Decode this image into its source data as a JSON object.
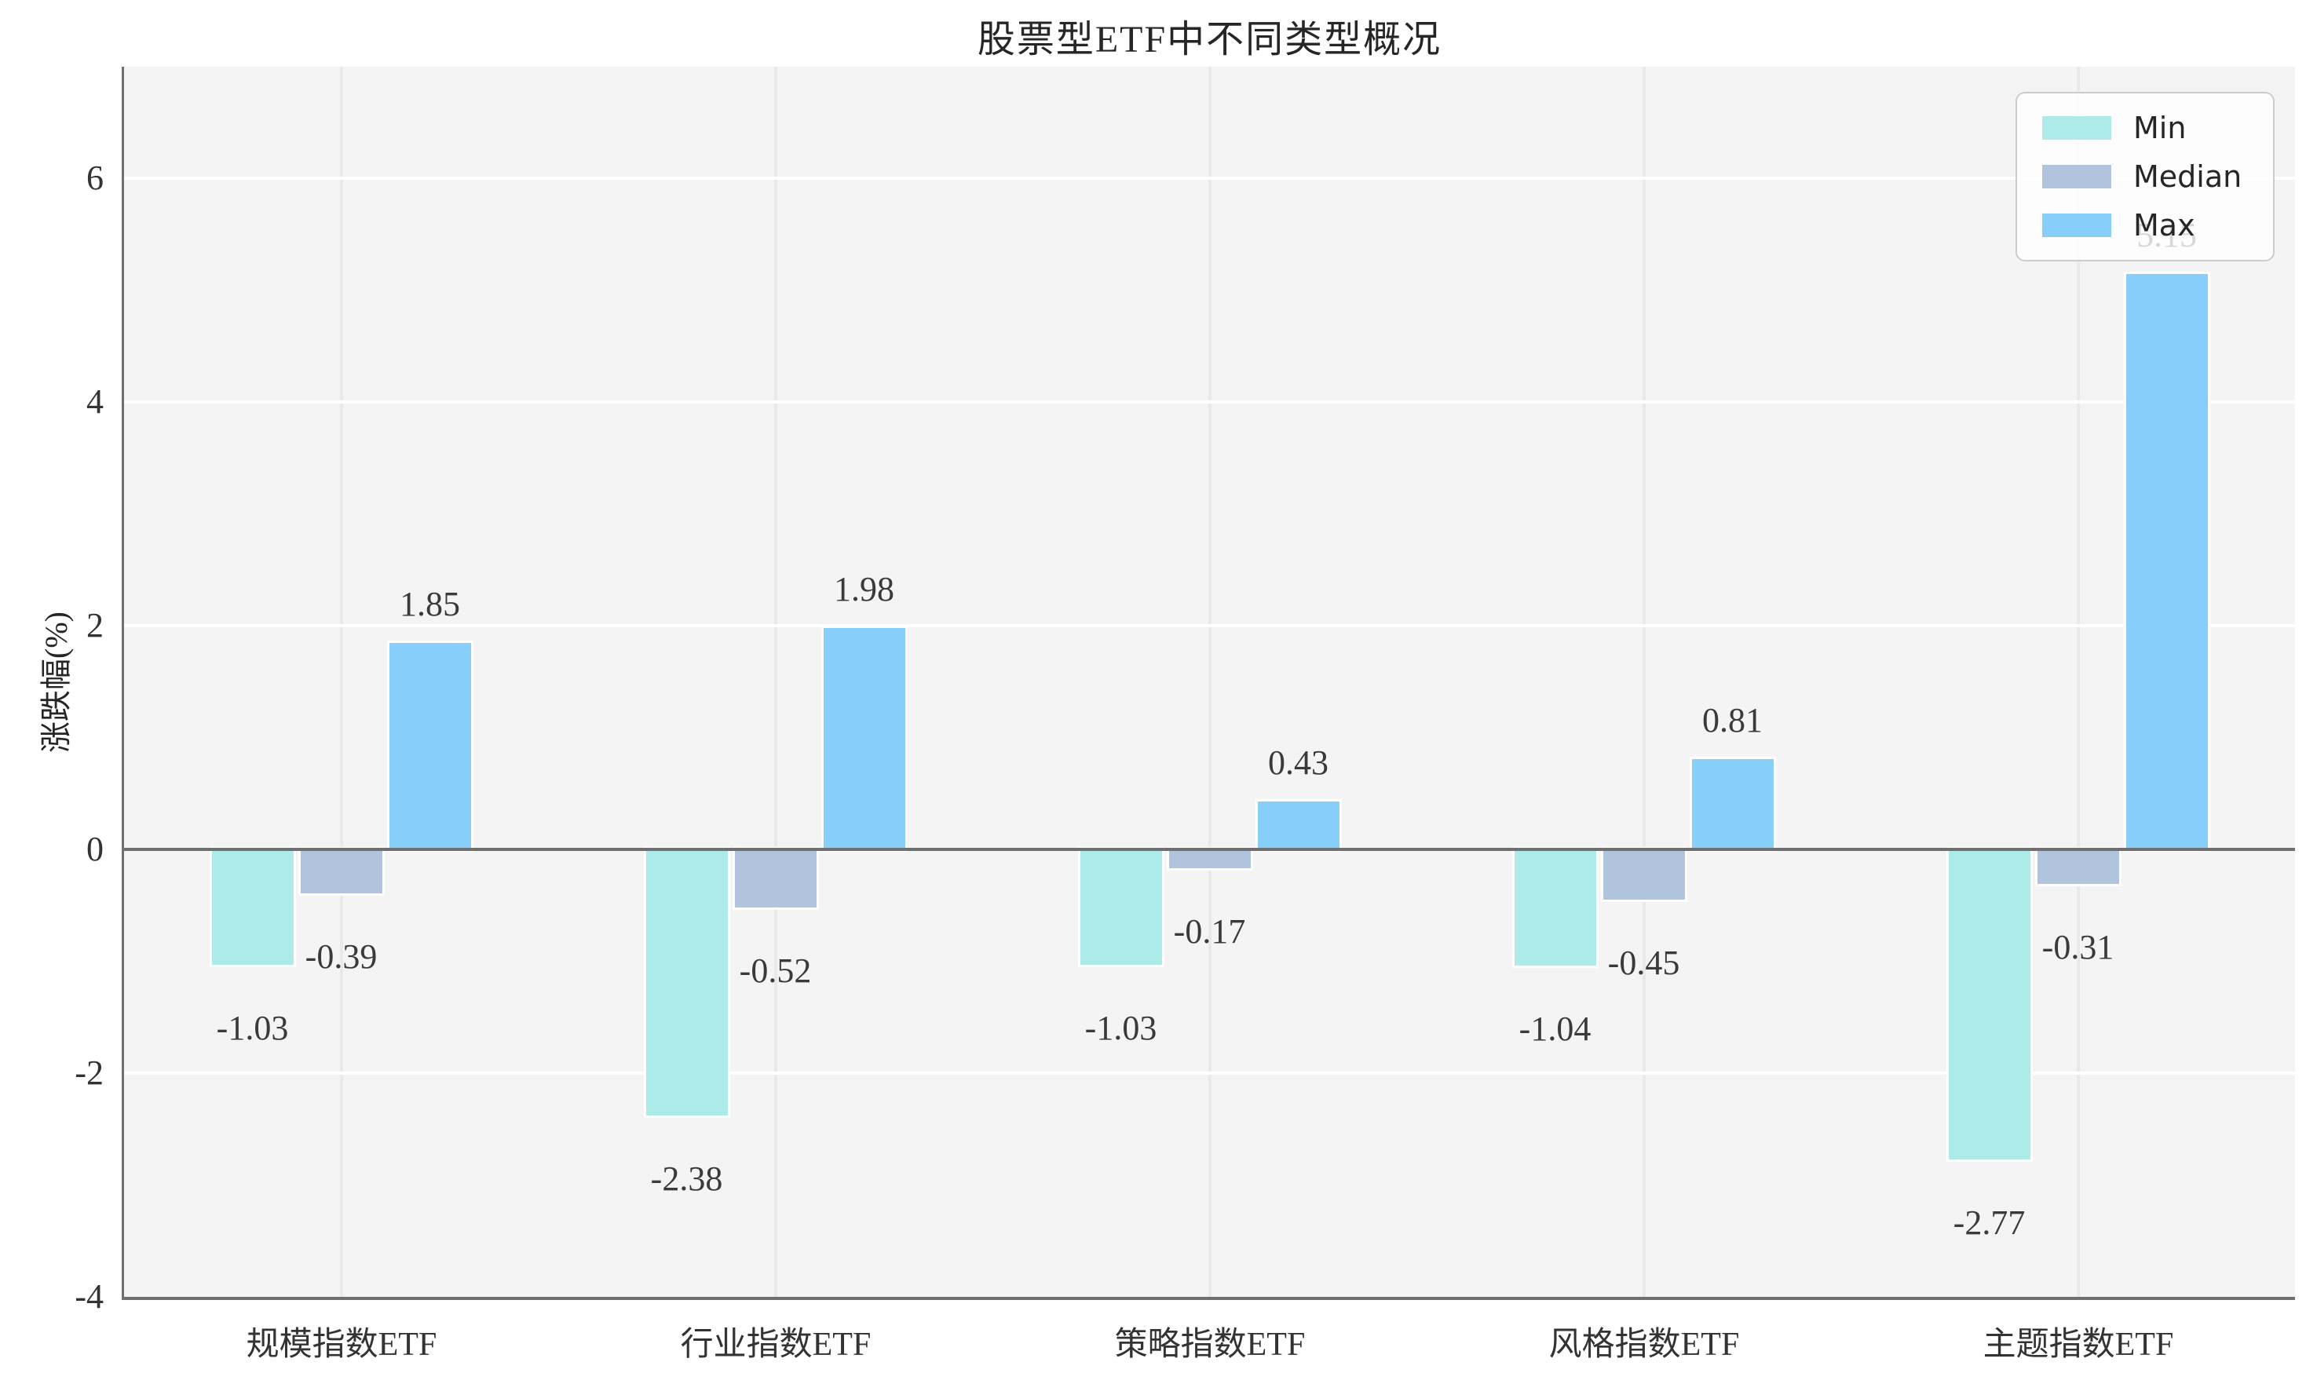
{
  "chart_data": {
    "type": "bar",
    "title": "股票型ETF中不同类型概况",
    "ylabel": "涨跌幅(%)",
    "xlabel": "",
    "categories": [
      "规模指数ETF",
      "行业指数ETF",
      "策略指数ETF",
      "风格指数ETF",
      "主题指数ETF"
    ],
    "series": [
      {
        "name": "Min",
        "color": "#ACEBE8",
        "values": [
          -1.03,
          -2.38,
          -1.03,
          -1.04,
          -2.77
        ],
        "labels": [
          "-1.03",
          "-2.38",
          "-1.03",
          "-1.04",
          "-2.77"
        ]
      },
      {
        "name": "Median",
        "color": "#B0C4DE",
        "values": [
          -0.39,
          -0.52,
          -0.17,
          -0.45,
          -0.31
        ],
        "labels": [
          "-0.39",
          "-0.52",
          "-0.17",
          "-0.45",
          "-0.31"
        ]
      },
      {
        "name": "Max",
        "color": "#87CEFA",
        "values": [
          1.85,
          1.98,
          0.43,
          0.81,
          5.15
        ],
        "labels": [
          "1.85",
          "1.98",
          "0.43",
          "0.81",
          "5.15"
        ]
      }
    ],
    "ylim": [
      -4,
      7
    ],
    "yticks": [
      {
        "value": 6,
        "label": "6"
      },
      {
        "value": 4,
        "label": "4"
      },
      {
        "value": 2,
        "label": "2"
      },
      {
        "value": 0,
        "label": "0"
      },
      {
        "value": -2,
        "label": "-2"
      },
      {
        "value": -4,
        "label": "-4"
      }
    ],
    "grid": true,
    "legend_position": "upper right",
    "plot_background": "#f4f4f4",
    "zero_line_color": "#6f6f6f"
  },
  "legend": {
    "items": [
      {
        "label": "Min",
        "color": "#ACEBE8"
      },
      {
        "label": "Median",
        "color": "#B0C4DE"
      },
      {
        "label": "Max",
        "color": "#87CEFA"
      }
    ]
  }
}
